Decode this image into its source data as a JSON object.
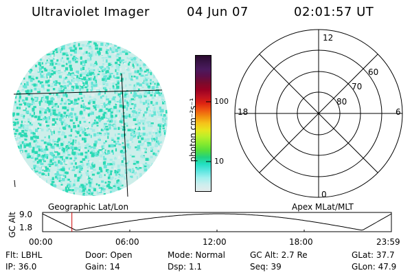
{
  "header": {
    "instrument": "Ultraviolet Imager",
    "date": "04 Jun 07",
    "time": "02:01:57 UT"
  },
  "colorbar": {
    "unit_label": "photon cm⁻²s⁻¹",
    "ticks": [
      "100",
      "10"
    ],
    "colors": [
      "#2a0a2e",
      "#3a1448",
      "#4a1a5e",
      "#5c0f4a",
      "#7a0a2c",
      "#990022",
      "#bb1122",
      "#dd2211",
      "#ee5511",
      "#f18f10",
      "#f5c41a",
      "#e6e61e",
      "#b8ef2a",
      "#86ea2e",
      "#55de3c",
      "#22d27e",
      "#22e0c2",
      "#5ce6e0",
      "#9ff0ee",
      "#cceeee",
      "#e4ecec"
    ]
  },
  "polar_plot": {
    "mlt_labels": [
      "12",
      "18",
      "6",
      "0"
    ],
    "lat_labels": [
      "60",
      "70",
      "80"
    ]
  },
  "timeline": {
    "left_title": "Geographic Lat/Lon",
    "right_title": "Apex MLat/MLT",
    "y_axis_label": "GC Alt",
    "y_ticks": [
      "9.0",
      "1.8"
    ],
    "x_ticks": [
      "00:00",
      "06:00",
      "12:00",
      "18:00",
      "23:59"
    ]
  },
  "info": {
    "row1": {
      "filter": "Flt: LBHL",
      "door": "Door: Open",
      "mode": "Mode: Normal",
      "gc_alt": "GC Alt: 2.7 Re",
      "glat": "GLat:  37.7"
    },
    "row2": {
      "ip": "IP: 36.0",
      "gain": "Gain: 14",
      "dsp": "Dsp:     1.1",
      "seq": "Seq: 39",
      "glon": "GLon:  47.9"
    }
  },
  "chart_data": {
    "type": "line",
    "x": [
      "00:00",
      "06:00",
      "12:00",
      "18:00",
      "23:59"
    ],
    "ylabel": "GC Alt",
    "ylim": [
      1.8,
      9.0
    ],
    "current_time": "02:01"
  }
}
